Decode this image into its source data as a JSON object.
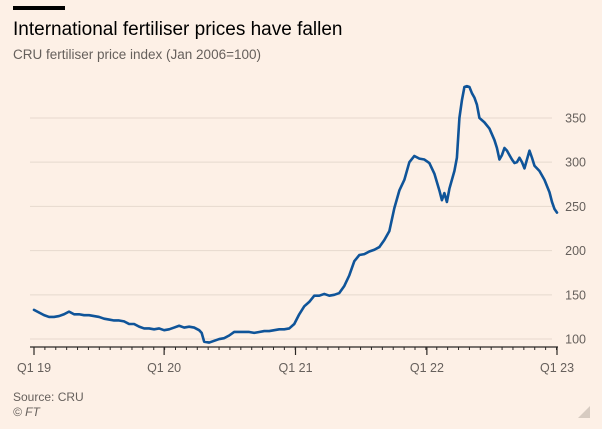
{
  "header": {
    "title": "International fertiliser prices have fallen",
    "subtitle": "CRU fertiliser price index (Jan 2006=100)"
  },
  "footer": {
    "source": "Source: CRU",
    "credit": "© FT"
  },
  "colors": {
    "background": "#fdf0e6",
    "line": "#0f5499",
    "grid": "#e6d9ce",
    "text": "#66605c"
  },
  "icons": {
    "resize": "resize-grip-icon"
  },
  "chart_data": {
    "type": "line",
    "title": "International fertiliser prices have fallen",
    "subtitle": "CRU fertiliser price index (Jan 2006=100)",
    "xlabel": "",
    "ylabel": "",
    "x_unit": "weeks from start of Q1 2019",
    "xlim": [
      0,
      209
    ],
    "ylim": [
      91,
      385
    ],
    "y_ticks": [
      100,
      150,
      200,
      250,
      300,
      350
    ],
    "x_ticks": [
      {
        "label": "Q1 19",
        "x": 0
      },
      {
        "label": "Q1 20",
        "x": 52
      },
      {
        "label": "Q1 21",
        "x": 104.5
      },
      {
        "label": "Q1 22",
        "x": 157
      },
      {
        "label": "Q1 23",
        "x": 209
      }
    ],
    "grid": true,
    "series": [
      {
        "name": "",
        "points": [
          [
            0,
            133
          ],
          [
            2,
            130
          ],
          [
            4,
            127
          ],
          [
            6,
            125
          ],
          [
            8,
            125
          ],
          [
            10,
            126
          ],
          [
            12,
            128
          ],
          [
            14,
            131
          ],
          [
            16,
            128
          ],
          [
            18,
            128
          ],
          [
            20,
            127
          ],
          [
            22,
            127
          ],
          [
            24,
            126
          ],
          [
            26,
            125
          ],
          [
            28,
            123
          ],
          [
            30,
            122
          ],
          [
            32,
            121
          ],
          [
            34,
            121
          ],
          [
            36,
            120
          ],
          [
            38,
            117
          ],
          [
            40,
            117
          ],
          [
            42,
            114
          ],
          [
            44,
            112
          ],
          [
            46,
            112
          ],
          [
            48,
            111
          ],
          [
            50,
            112
          ],
          [
            52,
            110
          ],
          [
            54,
            111
          ],
          [
            56,
            113
          ],
          [
            58,
            115
          ],
          [
            60,
            113
          ],
          [
            62,
            114
          ],
          [
            64,
            113
          ],
          [
            66,
            110
          ],
          [
            67,
            107
          ],
          [
            68,
            97
          ],
          [
            70,
            96
          ],
          [
            72,
            98
          ],
          [
            74,
            100
          ],
          [
            76,
            101
          ],
          [
            78,
            104
          ],
          [
            80,
            108
          ],
          [
            82,
            108
          ],
          [
            84,
            108
          ],
          [
            86,
            108
          ],
          [
            88,
            107
          ],
          [
            90,
            108
          ],
          [
            92,
            109
          ],
          [
            94,
            109
          ],
          [
            96,
            110
          ],
          [
            98,
            111
          ],
          [
            100,
            111
          ],
          [
            102,
            112
          ],
          [
            104,
            117
          ],
          [
            106,
            128
          ],
          [
            108,
            137
          ],
          [
            110,
            142
          ],
          [
            112,
            149
          ],
          [
            114,
            149
          ],
          [
            116,
            151
          ],
          [
            118,
            149
          ],
          [
            120,
            150
          ],
          [
            122,
            152
          ],
          [
            124,
            160
          ],
          [
            126,
            172
          ],
          [
            128,
            188
          ],
          [
            130,
            195
          ],
          [
            132,
            196
          ],
          [
            134,
            199
          ],
          [
            136,
            201
          ],
          [
            138,
            204
          ],
          [
            140,
            212
          ],
          [
            142,
            222
          ],
          [
            144,
            248
          ],
          [
            146,
            268
          ],
          [
            148,
            280
          ],
          [
            150,
            300
          ],
          [
            152,
            307
          ],
          [
            154,
            304
          ],
          [
            156,
            303
          ],
          [
            158,
            299
          ],
          [
            160,
            287
          ],
          [
            162,
            268
          ],
          [
            163,
            257
          ],
          [
            164,
            265
          ],
          [
            165,
            255
          ],
          [
            166,
            270
          ],
          [
            168,
            290
          ],
          [
            169,
            305
          ],
          [
            170,
            350
          ],
          [
            171,
            370
          ],
          [
            172,
            385
          ],
          [
            173,
            386
          ],
          [
            174,
            385
          ],
          [
            175,
            378
          ],
          [
            176,
            373
          ],
          [
            177,
            365
          ],
          [
            178,
            350
          ],
          [
            180,
            345
          ],
          [
            182,
            338
          ],
          [
            184,
            325
          ],
          [
            185,
            316
          ],
          [
            186,
            303
          ],
          [
            187,
            308
          ],
          [
            188,
            316
          ],
          [
            189,
            313
          ],
          [
            190,
            308
          ],
          [
            191,
            303
          ],
          [
            192,
            299
          ],
          [
            193,
            300
          ],
          [
            194,
            305
          ],
          [
            195,
            300
          ],
          [
            196,
            293
          ],
          [
            197,
            303
          ],
          [
            198,
            313
          ],
          [
            199,
            305
          ],
          [
            200,
            296
          ],
          [
            202,
            290
          ],
          [
            204,
            280
          ],
          [
            206,
            266
          ],
          [
            207,
            255
          ],
          [
            208,
            247
          ],
          [
            209,
            243
          ]
        ]
      }
    ]
  }
}
